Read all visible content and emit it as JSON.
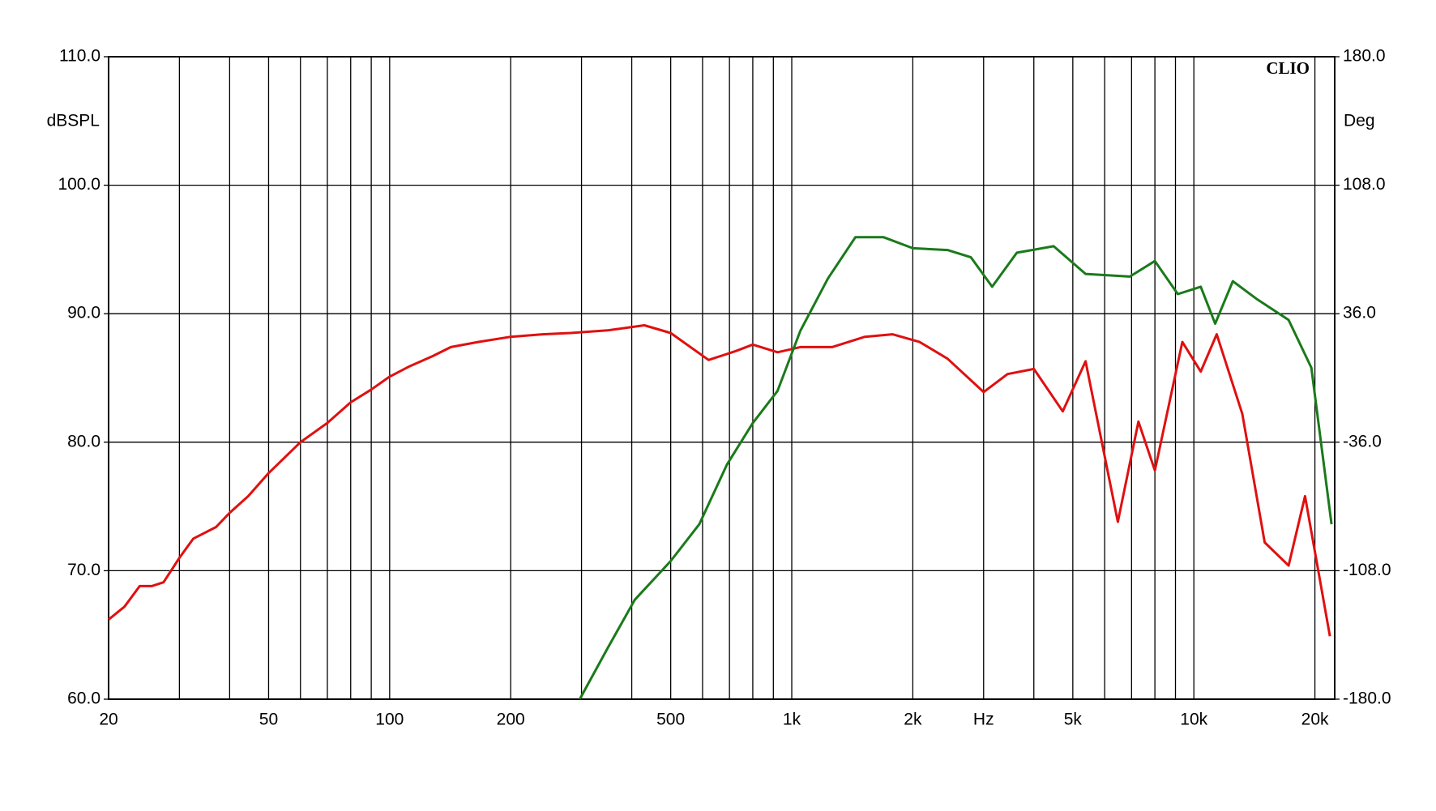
{
  "chart_data": {
    "type": "line",
    "xscale": "log",
    "ylabel": "dBSPL",
    "y2label": "Deg",
    "annotation": "CLIO",
    "xlim": [
      20,
      22400
    ],
    "ylim": [
      60,
      110
    ],
    "y2lim": [
      -180,
      180
    ],
    "xticks": [
      20,
      50,
      100,
      200,
      500,
      {
        "value": 1000,
        "label": "1k"
      },
      {
        "value": 2000,
        "label": "2k"
      },
      {
        "value": 3000,
        "label": "Hz"
      },
      {
        "value": 5000,
        "label": "5k"
      },
      {
        "value": 10000,
        "label": "10k"
      },
      {
        "value": 20000,
        "label": "20k"
      }
    ],
    "xgrid": [
      30,
      40,
      60,
      70,
      80,
      90,
      300,
      400,
      600,
      700,
      800,
      900,
      4000,
      6000,
      7000,
      8000,
      9000
    ],
    "yticks": [
      {
        "value": 60,
        "label": "60.0"
      },
      {
        "value": 70,
        "label": "70.0"
      },
      {
        "value": 80,
        "label": "80.0"
      },
      {
        "value": 90,
        "label": "90.0"
      },
      {
        "value": 100,
        "label": "100.0"
      },
      {
        "value": 110,
        "label": "110.0"
      }
    ],
    "y2ticks": [
      {
        "value": -180,
        "label": "-180.0"
      },
      {
        "value": -108,
        "label": "-108.0"
      },
      {
        "value": -36,
        "label": "-36.0"
      },
      {
        "value": 36,
        "label": "36.0"
      },
      {
        "value": 108,
        "label": "108.0"
      },
      {
        "value": 180,
        "label": "180.0"
      }
    ],
    "grid": true,
    "series": [
      {
        "color": "#e01010",
        "x": [
          20,
          21.9,
          23.9,
          25.6,
          27.4,
          30,
          32.5,
          37,
          40,
          44.5,
          50,
          60,
          70,
          80,
          90,
          100,
          112,
          128,
          142,
          166,
          200,
          240,
          282,
          348,
          430,
          500,
          621,
          727,
          800,
          922,
          1050,
          1260,
          1520,
          1780,
          2080,
          2440,
          3000,
          3440,
          4000,
          4720,
          5380,
          6470,
          7280,
          8000,
          9360,
          10400,
          11400,
          13200,
          15000,
          17200,
          18900,
          21800
        ],
        "values": [
          66.2,
          67.2,
          68.8,
          68.8,
          69.1,
          71.0,
          72.5,
          73.4,
          74.5,
          75.8,
          77.6,
          80.0,
          81.5,
          83.1,
          84.1,
          85.1,
          85.9,
          86.7,
          87.4,
          87.8,
          88.2,
          88.4,
          88.5,
          88.7,
          89.1,
          88.5,
          86.4,
          87.1,
          87.6,
          87.0,
          87.4,
          87.4,
          88.2,
          88.4,
          87.8,
          86.5,
          83.9,
          85.3,
          85.7,
          82.4,
          86.3,
          73.8,
          81.6,
          77.8,
          87.8,
          85.5,
          88.4,
          82.2,
          72.2,
          70.4,
          75.8,
          64.9
        ]
      },
      {
        "color": "#1a7a1a",
        "axis": "y2",
        "x": [
          297,
          348,
          407,
          500,
          589,
          690,
          800,
          922,
          1050,
          1230,
          1440,
          1690,
          2000,
          2440,
          2790,
          3150,
          3630,
          4480,
          5380,
          6930,
          8000,
          9120,
          10400,
          11300,
          12500,
          14300,
          17200,
          19600,
          22000
        ],
        "values": [
          -180,
          -151.6,
          -124.3,
          -102.6,
          -82,
          -48.5,
          -25.3,
          -7.2,
          26.3,
          55.7,
          78.9,
          78.9,
          72.7,
          71.7,
          67.6,
          51.1,
          70.2,
          73.8,
          58.3,
          56.8,
          65.5,
          47,
          51.1,
          30.4,
          54.2,
          44.4,
          32.5,
          5.7,
          -82
        ]
      }
    ]
  }
}
